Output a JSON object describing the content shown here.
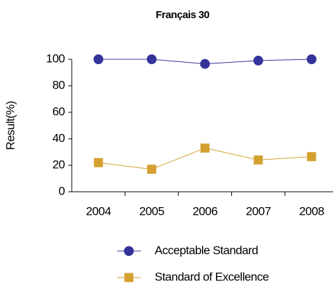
{
  "chart_data": {
    "type": "line",
    "title": "Français 30",
    "y_label": "Result(%)",
    "categories": [
      "2004",
      "2005",
      "2006",
      "2007",
      "2008"
    ],
    "series": [
      {
        "name": "Acceptable Standard",
        "color": "#333399",
        "marker": "circle",
        "values": [
          100,
          100,
          96.5,
          99,
          100
        ]
      },
      {
        "name": "Standard of Excellence",
        "color": "#d4a030",
        "marker": "square",
        "values": [
          22,
          17,
          33,
          24,
          26.5
        ]
      }
    ],
    "ylim": [
      0,
      100
    ],
    "yticks": [
      0,
      20,
      40,
      60,
      80,
      100
    ],
    "grid": false,
    "legend": "bottom"
  }
}
